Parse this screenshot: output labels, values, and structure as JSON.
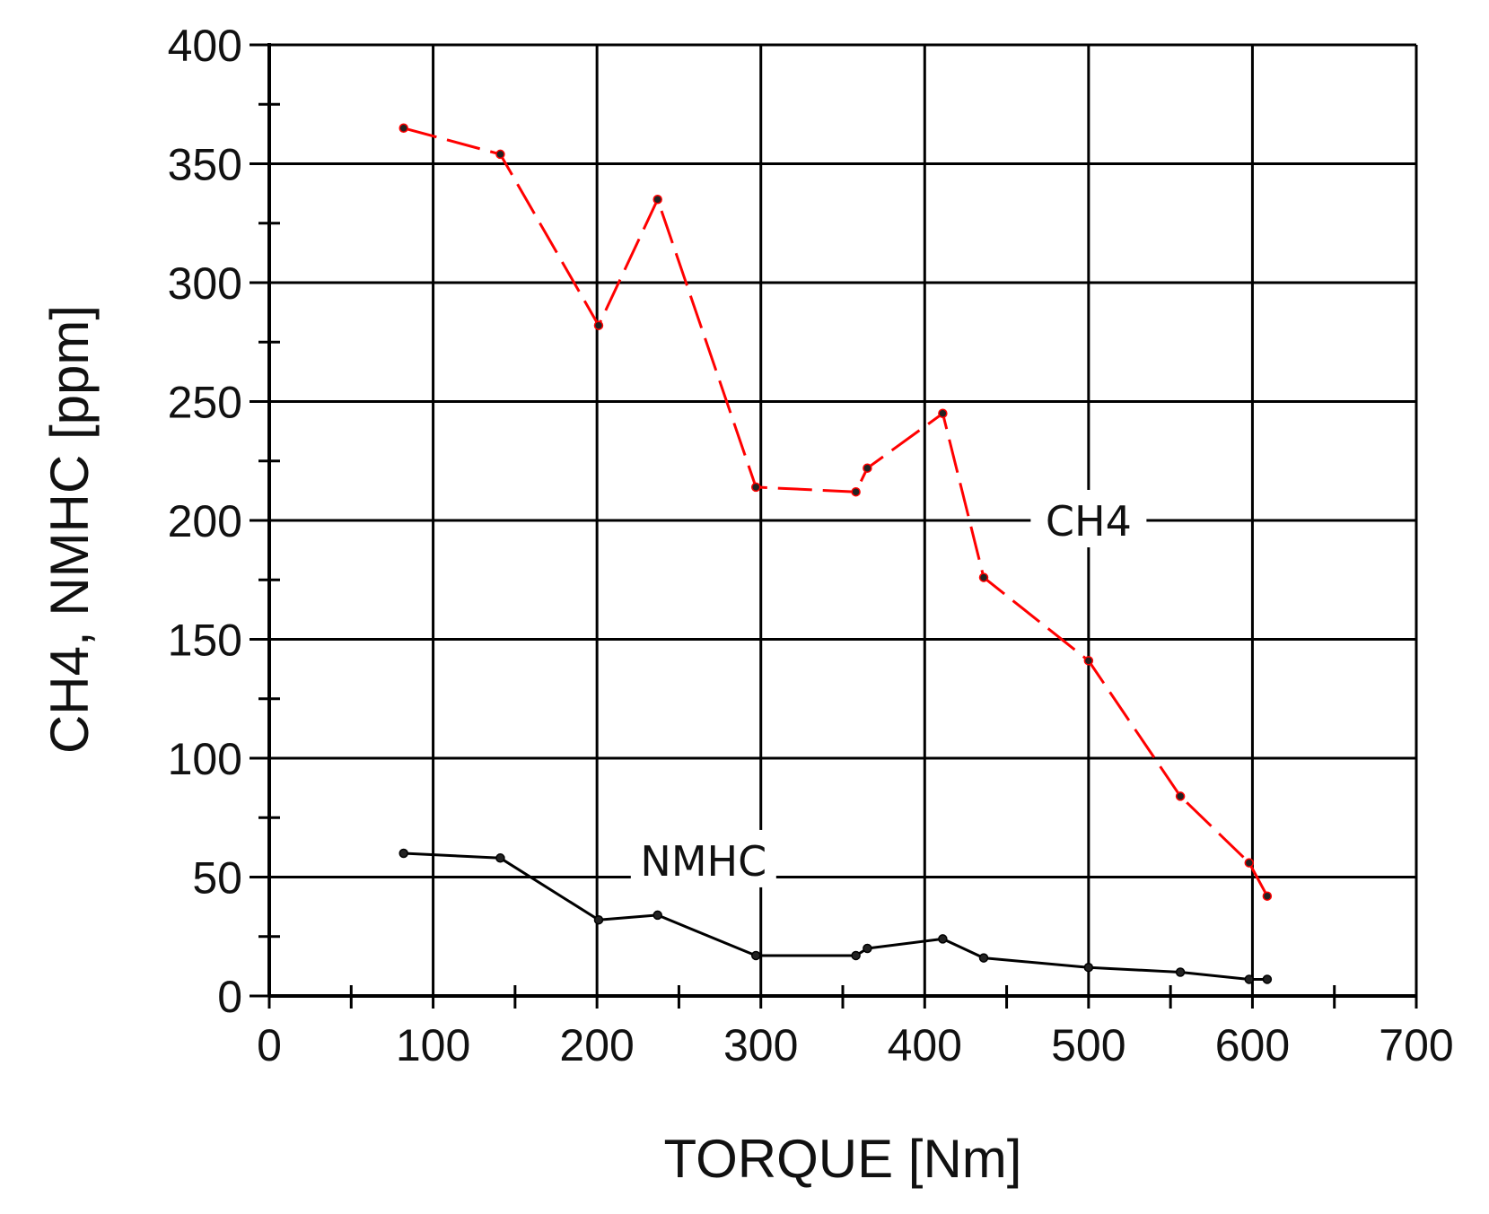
{
  "chart_data": {
    "type": "line",
    "title": "",
    "xlabel": "TORQUE [Nm]",
    "ylabel": "CH4, NMHC [ppm]",
    "xlim": [
      0,
      700
    ],
    "ylim": [
      0,
      400
    ],
    "x_ticks": [
      0,
      100,
      200,
      300,
      400,
      500,
      600,
      700
    ],
    "y_ticks": [
      0,
      50,
      100,
      150,
      200,
      250,
      300,
      350,
      400
    ],
    "x_tick_labels": [
      "0",
      "100",
      "200",
      "300",
      "400",
      "500",
      "600",
      "700"
    ],
    "y_tick_labels": [
      "0",
      "50",
      "100",
      "150",
      "200",
      "250",
      "300",
      "350",
      "400"
    ],
    "x_minor_step": 50,
    "y_minor_step": 25,
    "grid": true,
    "legend": "none; series labeled inline",
    "series": [
      {
        "name": "CH4",
        "color": "#ff0000",
        "line_style": "dashed",
        "x": [
          82,
          141,
          201,
          237,
          297,
          358,
          365,
          411,
          436,
          500,
          556,
          598,
          609
        ],
        "y": [
          365,
          354,
          282,
          335,
          214,
          212,
          222,
          245,
          176,
          141,
          84,
          56,
          42
        ]
      },
      {
        "name": "NMHC",
        "color": "#000000",
        "line_style": "solid",
        "x": [
          82,
          141,
          201,
          237,
          297,
          358,
          365,
          411,
          436,
          500,
          556,
          598,
          609
        ],
        "y": [
          60,
          58,
          32,
          34,
          17,
          17,
          20,
          24,
          16,
          12,
          10,
          7,
          7
        ]
      }
    ],
    "annotations": [
      {
        "text": "CH4",
        "x": 500,
        "y": 200
      },
      {
        "text": "NMHC",
        "x": 265,
        "y": 57
      }
    ]
  }
}
